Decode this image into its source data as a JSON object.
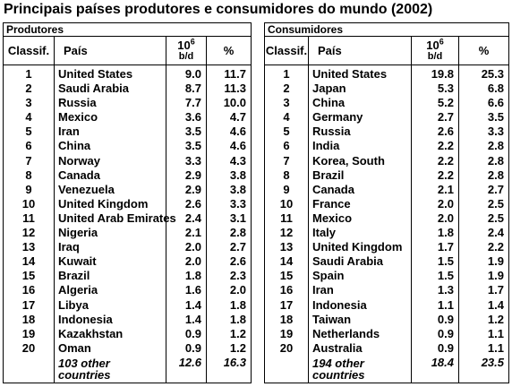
{
  "title": "Principais países produtores e consumidores do mundo (2002)",
  "producers": {
    "heading": "Produtores",
    "col_rank": "Classif.",
    "col_country": "País",
    "col_unit_base": "10",
    "col_unit_exp": "6",
    "col_unit_sub": "b/d",
    "col_pct": "%",
    "rows": [
      {
        "rank": "1",
        "country": "United States",
        "value": "9.0",
        "pct": "11.7"
      },
      {
        "rank": "2",
        "country": "Saudi Arabia",
        "value": "8.7",
        "pct": "11.3"
      },
      {
        "rank": "3",
        "country": "Russia",
        "value": "7.7",
        "pct": "10.0"
      },
      {
        "rank": "4",
        "country": "Mexico",
        "value": "3.6",
        "pct": "4.7"
      },
      {
        "rank": "5",
        "country": "Iran",
        "value": "3.5",
        "pct": "4.6"
      },
      {
        "rank": "6",
        "country": "China",
        "value": "3.5",
        "pct": "4.6"
      },
      {
        "rank": "7",
        "country": "Norway",
        "value": "3.3",
        "pct": "4.3"
      },
      {
        "rank": "8",
        "country": "Canada",
        "value": "2.9",
        "pct": "3.8"
      },
      {
        "rank": "9",
        "country": "Venezuela",
        "value": "2.9",
        "pct": "3.8"
      },
      {
        "rank": "10",
        "country": "United Kingdom",
        "value": "2.6",
        "pct": "3.3"
      },
      {
        "rank": "11",
        "country": "United Arab Emirates",
        "value": "2.4",
        "pct": "3.1"
      },
      {
        "rank": "12",
        "country": "Nigeria",
        "value": "2.1",
        "pct": "2.8"
      },
      {
        "rank": "13",
        "country": "Iraq",
        "value": "2.0",
        "pct": "2.7"
      },
      {
        "rank": "14",
        "country": "Kuwait",
        "value": "2.0",
        "pct": "2.6"
      },
      {
        "rank": "15",
        "country": "Brazil",
        "value": "1.8",
        "pct": "2.3"
      },
      {
        "rank": "16",
        "country": "Algeria",
        "value": "1.6",
        "pct": "2.0"
      },
      {
        "rank": "17",
        "country": "Libya",
        "value": "1.4",
        "pct": "1.8"
      },
      {
        "rank": "18",
        "country": "Indonesia",
        "value": "1.4",
        "pct": "1.8"
      },
      {
        "rank": "19",
        "country": "Kazakhstan",
        "value": "0.9",
        "pct": "1.2"
      },
      {
        "rank": "20",
        "country": "Oman",
        "value": "0.9",
        "pct": "1.2"
      }
    ],
    "total": {
      "label_line1": "103 other",
      "label_line2": "countries",
      "value": "12.6",
      "pct": "16.3"
    }
  },
  "consumers": {
    "heading": "Consumidores",
    "col_rank": "Classif.",
    "col_country": "País",
    "col_unit_base": "10",
    "col_unit_exp": "6",
    "col_unit_sub": "b/d",
    "col_pct": "%",
    "rows": [
      {
        "rank": "1",
        "country": "United States",
        "value": "19.8",
        "pct": "25.3"
      },
      {
        "rank": "2",
        "country": "Japan",
        "value": "5.3",
        "pct": "6.8"
      },
      {
        "rank": "3",
        "country": "China",
        "value": "5.2",
        "pct": "6.6"
      },
      {
        "rank": "4",
        "country": "Germany",
        "value": "2.7",
        "pct": "3.5"
      },
      {
        "rank": "5",
        "country": "Russia",
        "value": "2.6",
        "pct": "3.3"
      },
      {
        "rank": "6",
        "country": "India",
        "value": "2.2",
        "pct": "2.8"
      },
      {
        "rank": "7",
        "country": "Korea, South",
        "value": "2.2",
        "pct": "2.8"
      },
      {
        "rank": "8",
        "country": "Brazil",
        "value": "2.2",
        "pct": "2.8"
      },
      {
        "rank": "9",
        "country": "Canada",
        "value": "2.1",
        "pct": "2.7"
      },
      {
        "rank": "10",
        "country": "France",
        "value": "2.0",
        "pct": "2.5"
      },
      {
        "rank": "11",
        "country": "Mexico",
        "value": "2.0",
        "pct": "2.5"
      },
      {
        "rank": "12",
        "country": "Italy",
        "value": "1.8",
        "pct": "2.4"
      },
      {
        "rank": "13",
        "country": "United Kingdom",
        "value": "1.7",
        "pct": "2.2"
      },
      {
        "rank": "14",
        "country": "Saudi Arabia",
        "value": "1.5",
        "pct": "1.9"
      },
      {
        "rank": "15",
        "country": "Spain",
        "value": "1.5",
        "pct": "1.9"
      },
      {
        "rank": "16",
        "country": "Iran",
        "value": "1.3",
        "pct": "1.7"
      },
      {
        "rank": "17",
        "country": "Indonesia",
        "value": "1.1",
        "pct": "1.4"
      },
      {
        "rank": "18",
        "country": "Taiwan",
        "value": "0.9",
        "pct": "1.2"
      },
      {
        "rank": "19",
        "country": "Netherlands",
        "value": "0.9",
        "pct": "1.1"
      },
      {
        "rank": "20",
        "country": "Australia",
        "value": "0.9",
        "pct": "1.1"
      }
    ],
    "total": {
      "label_line1": "194 other",
      "label_line2": "countries",
      "value": "18.4",
      "pct": "23.5"
    }
  }
}
